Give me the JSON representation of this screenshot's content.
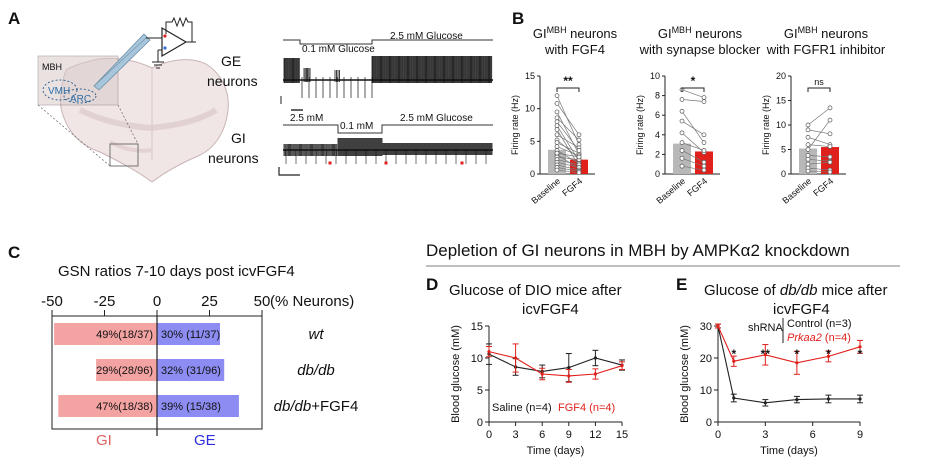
{
  "panelA": {
    "letter": "A",
    "brain": {
      "region": "MBH",
      "vmh": "VMH",
      "arc": "ARC"
    },
    "ge": {
      "label1": "GE",
      "label2": "neurons",
      "seg1": "0.1 mM Glucose",
      "seg2": "2.5 mM Glucose"
    },
    "gi": {
      "label1": "GI",
      "label2": "neurons",
      "seg1": "2.5 mM",
      "seg2": "0.1 mM",
      "seg3": "2.5 mM Glucose"
    }
  },
  "panelB": {
    "letter": "B",
    "subpanels": [
      {
        "title_base": "GI",
        "title_sup": "MBH",
        "title_rest": " neurons",
        "title2": "with FGF4",
        "ylabel": "Firing rate (Hz)",
        "ymax": 15,
        "ticks": [
          "0",
          "5",
          "10",
          "15"
        ],
        "sig": "**",
        "xcats": [
          "Baseline",
          "FGF4"
        ],
        "bars": [
          3.7,
          2.2
        ]
      },
      {
        "title_base": "GI",
        "title_sup": "MBH",
        "title_rest": " neurons",
        "title2": "with synapse blocker",
        "ylabel": "Firing rate (Hz)",
        "ymax": 10,
        "ticks": [
          "0",
          "2",
          "4",
          "6",
          "8",
          "10"
        ],
        "sig": "*",
        "xcats": [
          "Baseline",
          "FGF4"
        ],
        "bars": [
          3.1,
          2.3
        ]
      },
      {
        "title_base": "GI",
        "title_sup": "MBH",
        "title_rest": " neurons",
        "title2": "with FGFR1 inhibitor",
        "ylabel": "Firing rate (Hz)",
        "ymax": 20,
        "ticks": [
          "0",
          "5",
          "10",
          "15",
          "20"
        ],
        "sig": "ns",
        "xcats": [
          "Baseline",
          "FGF4"
        ],
        "bars": [
          5.2,
          5.5
        ]
      }
    ]
  },
  "panelC": {
    "letter": "C",
    "title": "GSN ratios 7-10 days post icvFGF4",
    "axis_ticks": [
      "-50",
      "-25",
      "0",
      "25",
      "50"
    ],
    "axis_unit": "(% Neurons)",
    "gi_label": "GI",
    "ge_label": "GE",
    "gi_color": "#f4a3a3",
    "ge_color": "#8c8cf2"
  },
  "section_title": "Depletion of GI neurons in MBH by AMPKα2 knockdown",
  "panelD": {
    "letter": "D",
    "title1": "Glucose of DIO mice after",
    "title2": "icvFGF4",
    "xlabel": "Time (days)",
    "ylabel": "Blood glucose (mM)",
    "xticks": [
      "0",
      "3",
      "6",
      "9",
      "12",
      "15"
    ],
    "yticks": [
      "0",
      "5",
      "10",
      "15"
    ]
  },
  "panelE": {
    "letter": "E",
    "title_pre": "Glucose of ",
    "title_italic": "db/db",
    "title_post": " mice after",
    "title2": "icvFGF4",
    "shrna": "shRNA",
    "xlabel": "Time (days)",
    "ylabel": "Blood glucose (mM)",
    "xticks": [
      "0",
      "3",
      "6",
      "9"
    ],
    "yticks": [
      "0",
      "10",
      "20",
      "30"
    ],
    "sig": [
      "*",
      "**",
      "*",
      "*",
      "*"
    ]
  },
  "chart_data": [
    {
      "type": "bar",
      "title": "GIMBH neurons with FGF4",
      "categories": [
        "Baseline",
        "FGF4"
      ],
      "values": [
        3.7,
        2.2
      ],
      "ylabel": "Firing rate (Hz)",
      "ylim": [
        0,
        15
      ],
      "significance": "**"
    },
    {
      "type": "bar",
      "title": "GIMBH neurons with synapse blocker",
      "categories": [
        "Baseline",
        "FGF4"
      ],
      "values": [
        3.1,
        2.3
      ],
      "ylabel": "Firing rate (Hz)",
      "ylim": [
        0,
        10
      ],
      "significance": "*"
    },
    {
      "type": "bar",
      "title": "GIMBH neurons with FGFR1 inhibitor",
      "categories": [
        "Baseline",
        "FGF4"
      ],
      "values": [
        5.2,
        5.5
      ],
      "ylabel": "Firing rate (Hz)",
      "ylim": [
        0,
        20
      ],
      "significance": "ns"
    },
    {
      "type": "bar",
      "title": "GSN ratios 7-10 days post icvFGF4",
      "xlabel": "(% Neurons)",
      "xlim": [
        -50,
        50
      ],
      "categories": [
        "wt",
        "db/db",
        "db/db+FGF4"
      ],
      "series": [
        {
          "name": "GI",
          "values": [
            -49,
            -29,
            -47
          ],
          "labels": [
            "49%(18/37)",
            "29%(28/96)",
            "47%(18/38)"
          ]
        },
        {
          "name": "GE",
          "values": [
            30,
            32,
            39
          ],
          "labels": [
            "30% (11/37)",
            "32% (31/96)",
            "39% (15/38)"
          ]
        }
      ]
    },
    {
      "type": "line",
      "title": "Glucose of DIO mice after icvFGF4",
      "xlabel": "Time (days)",
      "ylabel": "Blood glucose (mM)",
      "xlim": [
        0,
        15
      ],
      "ylim": [
        0,
        15
      ],
      "x": [
        0,
        3,
        6,
        9,
        12,
        15
      ],
      "series": [
        {
          "name": "Saline (n=4)",
          "color": "#222222",
          "values": [
            10.6,
            8.6,
            7.9,
            8.5,
            10.0,
            8.9
          ],
          "err": [
            1.6,
            1.3,
            1.0,
            2.2,
            1.2,
            0.8
          ]
        },
        {
          "name": "FGF4 (n=4)",
          "color": "#e0201b",
          "values": [
            11.0,
            10.0,
            7.5,
            7.2,
            7.5,
            8.8
          ],
          "err": [
            0.8,
            2.2,
            0.9,
            1.0,
            0.8,
            0.6
          ]
        }
      ]
    },
    {
      "type": "line",
      "title": "Glucose of db/db mice after icvFGF4",
      "xlabel": "Time (days)",
      "ylabel": "Blood glucose (mM)",
      "xlim": [
        0,
        9
      ],
      "ylim": [
        0,
        30
      ],
      "x": [
        0,
        1,
        3,
        5,
        7,
        9
      ],
      "series": [
        {
          "name": "Control (n=3)",
          "color": "#222222",
          "values": [
            30,
            7.5,
            6.0,
            7.0,
            7.2,
            7.2
          ],
          "err": [
            0.6,
            1.2,
            1.0,
            1.0,
            1.2,
            1.2
          ]
        },
        {
          "name": "Prkaa2 (n=4)",
          "color": "#e0201b",
          "values": [
            30,
            19.0,
            21.0,
            18.5,
            20.5,
            23.5
          ],
          "err": [
            0.6,
            1.6,
            3.2,
            3.6,
            1.7,
            2.0
          ]
        }
      ],
      "significance": [
        "*",
        "**",
        "*",
        "*",
        "*"
      ]
    }
  ]
}
